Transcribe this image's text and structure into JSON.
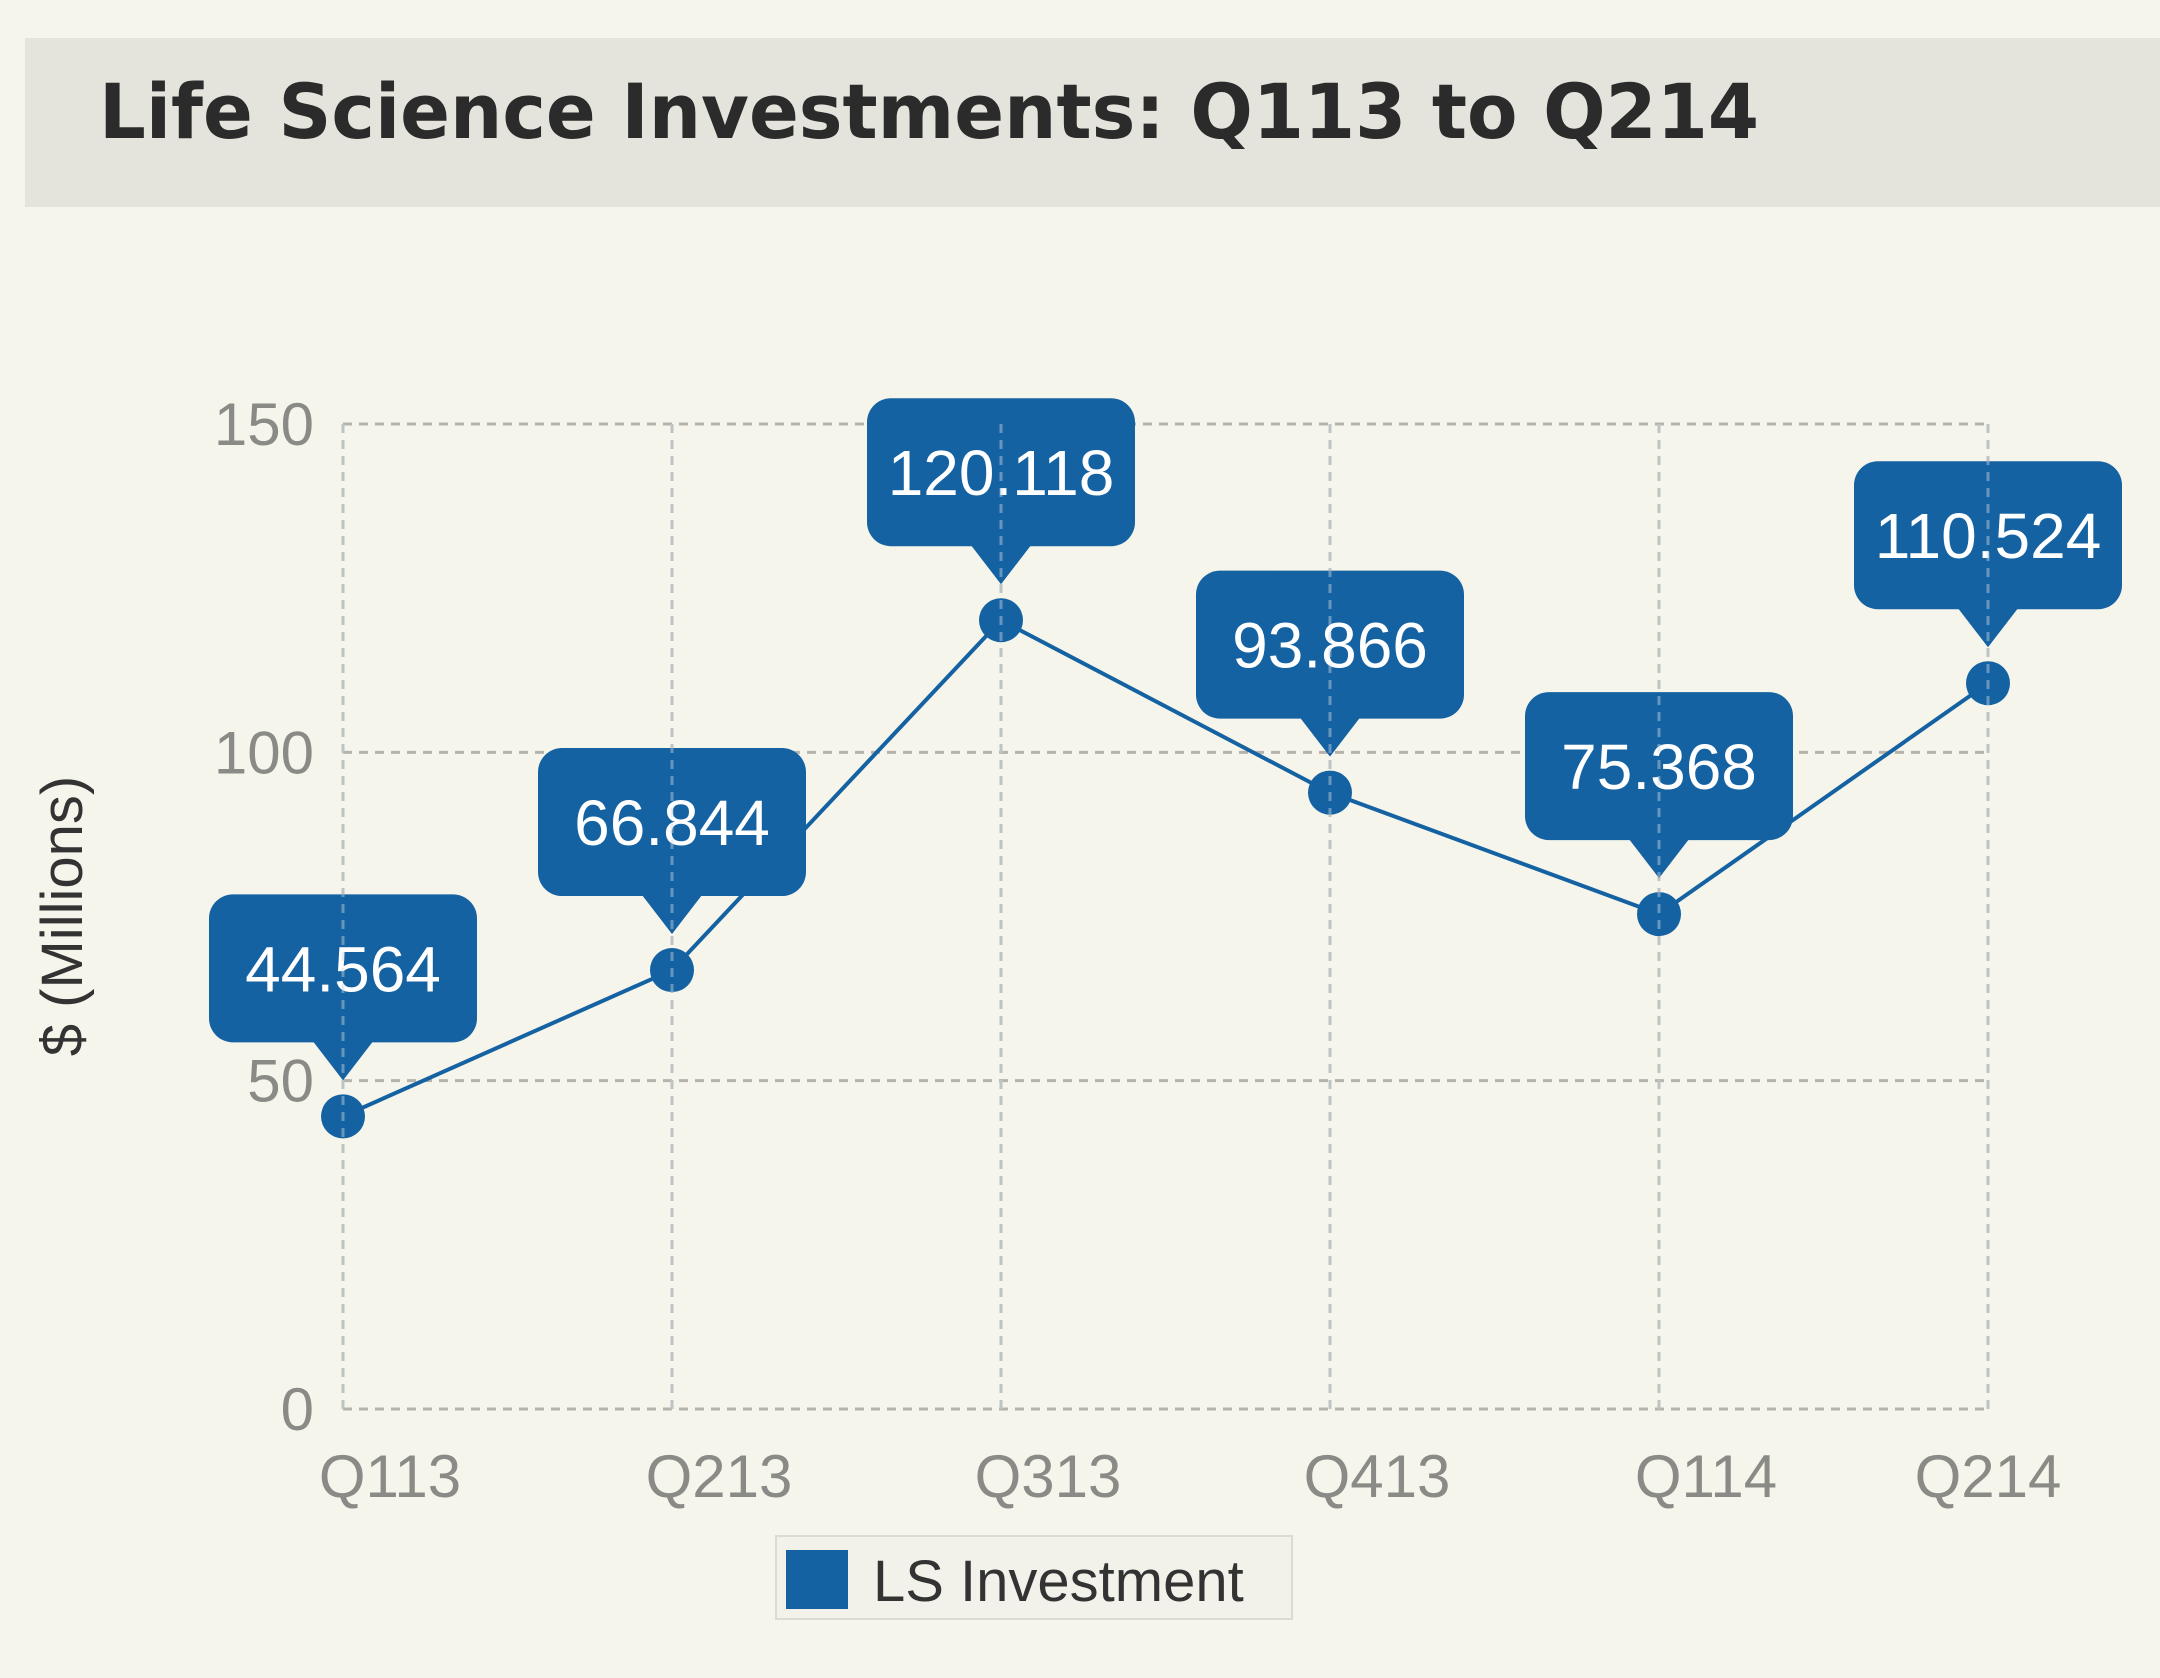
{
  "chart_data": {
    "type": "line",
    "title": "Life Science Investments: Q113 to Q214",
    "xlabel": "",
    "ylabel": "$ (Millions)",
    "categories": [
      "Q113",
      "Q213",
      "Q313",
      "Q413",
      "Q114",
      "Q214"
    ],
    "series": [
      {
        "name": "LS Investment",
        "values": [
          44.564,
          66.844,
          120.118,
          93.866,
          75.368,
          110.524
        ],
        "color": "#1562a2"
      }
    ],
    "data_labels": [
      "44.564",
      "66.844",
      "120.118",
      "93.866",
      "75.368",
      "110.524"
    ],
    "ylim": [
      0,
      150
    ],
    "yticks": [
      0,
      50,
      100,
      150
    ],
    "grid": true,
    "legend_position": "bottom-center"
  },
  "colors": {
    "background": "#f6f5ec",
    "title_band": "#e4e3dc",
    "grid": "#b5b3ab"
  }
}
